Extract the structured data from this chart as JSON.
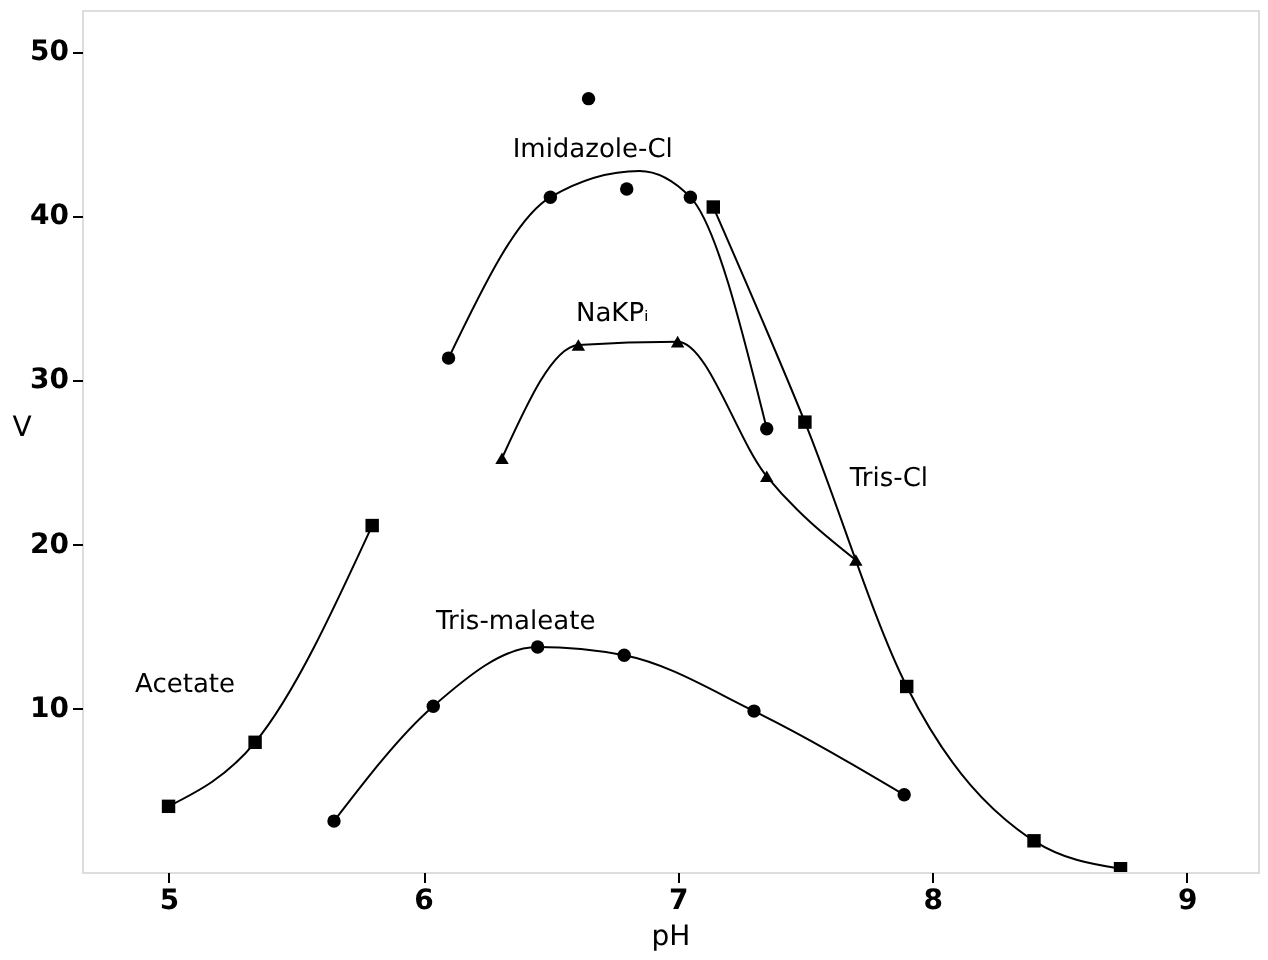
{
  "chart_data": {
    "type": "line",
    "xlabel": "pH",
    "ylabel": "V",
    "xlim": [
      4.66,
      9.28
    ],
    "xticks": [
      5,
      6,
      7,
      8,
      9
    ],
    "ylim": [
      0,
      52.5
    ],
    "yticks": [
      10,
      20,
      30,
      40,
      50
    ],
    "line_style": "solid",
    "series": [
      {
        "name": "Acetate",
        "type": "line",
        "marker": "square",
        "color": "#000000",
        "x": [
          5.0,
          5.34,
          5.8
        ],
        "values": [
          4.0,
          7.9,
          21.1
        ]
      },
      {
        "name": "Tris-maleate",
        "type": "line",
        "marker": "circle",
        "color": "#000000",
        "x": [
          5.65,
          6.04,
          6.45,
          6.79,
          7.3,
          7.89
        ],
        "values": [
          3.1,
          10.1,
          13.7,
          13.2,
          9.8,
          4.7
        ]
      },
      {
        "name": "Imidazole-Cl",
        "type": "scatter",
        "marker": "circle",
        "color": "#000000",
        "x": [
          6.1,
          6.5,
          6.65,
          6.8,
          7.05,
          7.35
        ],
        "values": [
          31.3,
          41.1,
          47.1,
          41.6,
          41.1,
          27.0
        ]
      },
      {
        "type": "line",
        "marker": "none",
        "color": "#000000",
        "x": [
          6.1,
          6.5,
          6.85,
          7.05,
          7.35
        ],
        "values": [
          31.3,
          41.1,
          42.7,
          41.1,
          27.0
        ]
      },
      {
        "name": "NaKPᵢ",
        "type": "line",
        "marker": "triangle",
        "color": "#000000",
        "x": [
          6.31,
          6.61,
          7.0,
          7.35,
          7.7
        ],
        "values": [
          25.2,
          32.1,
          32.3,
          24.1,
          19.0
        ]
      },
      {
        "name": "Tris-Cl",
        "type": "line",
        "marker": "square",
        "color": "#000000",
        "x": [
          7.14,
          7.5,
          7.9,
          8.4,
          8.74
        ],
        "values": [
          40.5,
          27.4,
          11.3,
          1.9,
          0.2
        ]
      }
    ]
  }
}
